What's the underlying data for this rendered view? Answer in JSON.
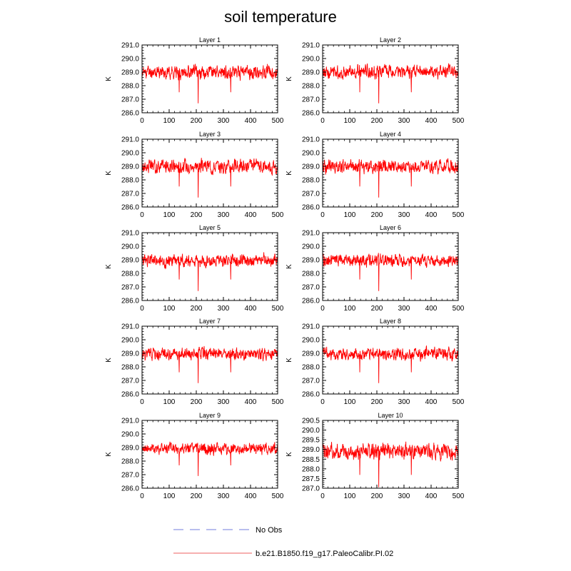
{
  "title": "soil temperature",
  "colors": {
    "series": "#ff0000",
    "no_obs": "#a0a8e8",
    "legend_line": "#f08080",
    "axis": "#000000"
  },
  "legend": {
    "entries": [
      {
        "label": "No Obs",
        "style": "dashed"
      },
      {
        "label": "b.e21.B1850.f19_g17.PaleoCalibr.PI.02",
        "style": "solid"
      }
    ]
  },
  "chart_data": [
    {
      "type": "line",
      "title": "Layer 1",
      "ylabel": "K",
      "xlim": [
        0,
        500
      ],
      "ylim": [
        286.0,
        291.0
      ],
      "xticks": [
        0,
        100,
        200,
        300,
        400,
        500
      ],
      "yticks": [
        286.0,
        287.0,
        288.0,
        289.0,
        290.0,
        291.0
      ],
      "yformat": 1,
      "series": [
        {
          "name": "b.e21.B1850.f19_g17.PaleoCalibr.PI.02",
          "mean": 289.0,
          "amplitude": 0.55,
          "dip_at": 207,
          "dip_value": 286.7,
          "seed": 11,
          "n": 500
        }
      ]
    },
    {
      "type": "line",
      "title": "Layer 2",
      "ylabel": "K",
      "xlim": [
        0,
        500
      ],
      "ylim": [
        286.0,
        291.0
      ],
      "xticks": [
        0,
        100,
        200,
        300,
        400,
        500
      ],
      "yticks": [
        286.0,
        287.0,
        288.0,
        289.0,
        290.0,
        291.0
      ],
      "yformat": 1,
      "series": [
        {
          "name": "b.e21.B1850.f19_g17.PaleoCalibr.PI.02",
          "mean": 289.0,
          "amplitude": 0.55,
          "dip_at": 207,
          "dip_value": 286.7,
          "seed": 13,
          "n": 500
        }
      ]
    },
    {
      "type": "line",
      "title": "Layer 3",
      "ylabel": "K",
      "xlim": [
        0,
        500
      ],
      "ylim": [
        286.0,
        291.0
      ],
      "xticks": [
        0,
        100,
        200,
        300,
        400,
        500
      ],
      "yticks": [
        286.0,
        287.0,
        288.0,
        289.0,
        290.0,
        291.0
      ],
      "yformat": 1,
      "series": [
        {
          "name": "b.e21.B1850.f19_g17.PaleoCalibr.PI.02",
          "mean": 289.0,
          "amplitude": 0.55,
          "dip_at": 207,
          "dip_value": 286.7,
          "seed": 17,
          "n": 500
        }
      ]
    },
    {
      "type": "line",
      "title": "Layer 4",
      "ylabel": "K",
      "xlim": [
        0,
        500
      ],
      "ylim": [
        286.0,
        291.0
      ],
      "xticks": [
        0,
        100,
        200,
        300,
        400,
        500
      ],
      "yticks": [
        286.0,
        287.0,
        288.0,
        289.0,
        290.0,
        291.0
      ],
      "yformat": 1,
      "series": [
        {
          "name": "b.e21.B1850.f19_g17.PaleoCalibr.PI.02",
          "mean": 289.0,
          "amplitude": 0.55,
          "dip_at": 207,
          "dip_value": 286.7,
          "seed": 19,
          "n": 500
        }
      ]
    },
    {
      "type": "line",
      "title": "Layer 5",
      "ylabel": "K",
      "xlim": [
        0,
        500
      ],
      "ylim": [
        286.0,
        291.0
      ],
      "xticks": [
        0,
        100,
        200,
        300,
        400,
        500
      ],
      "yticks": [
        286.0,
        287.0,
        288.0,
        289.0,
        290.0,
        291.0
      ],
      "yformat": 1,
      "series": [
        {
          "name": "b.e21.B1850.f19_g17.PaleoCalibr.PI.02",
          "mean": 288.95,
          "amplitude": 0.52,
          "dip_at": 207,
          "dip_value": 286.7,
          "seed": 23,
          "n": 500
        }
      ]
    },
    {
      "type": "line",
      "title": "Layer 6",
      "ylabel": "K",
      "xlim": [
        0,
        500
      ],
      "ylim": [
        286.0,
        291.0
      ],
      "xticks": [
        0,
        100,
        200,
        300,
        400,
        500
      ],
      "yticks": [
        286.0,
        287.0,
        288.0,
        289.0,
        290.0,
        291.0
      ],
      "yformat": 1,
      "series": [
        {
          "name": "b.e21.B1850.f19_g17.PaleoCalibr.PI.02",
          "mean": 288.95,
          "amplitude": 0.52,
          "dip_at": 207,
          "dip_value": 286.7,
          "seed": 29,
          "n": 500
        }
      ]
    },
    {
      "type": "line",
      "title": "Layer 7",
      "ylabel": "K",
      "xlim": [
        0,
        500
      ],
      "ylim": [
        286.0,
        291.0
      ],
      "xticks": [
        0,
        100,
        200,
        300,
        400,
        500
      ],
      "yticks": [
        286.0,
        287.0,
        288.0,
        289.0,
        290.0,
        291.0
      ],
      "yformat": 1,
      "series": [
        {
          "name": "b.e21.B1850.f19_g17.PaleoCalibr.PI.02",
          "mean": 288.95,
          "amplitude": 0.5,
          "dip_at": 207,
          "dip_value": 286.8,
          "seed": 31,
          "n": 500
        }
      ]
    },
    {
      "type": "line",
      "title": "Layer 8",
      "ylabel": "K",
      "xlim": [
        0,
        500
      ],
      "ylim": [
        286.0,
        291.0
      ],
      "xticks": [
        0,
        100,
        200,
        300,
        400,
        500
      ],
      "yticks": [
        286.0,
        287.0,
        288.0,
        289.0,
        290.0,
        291.0
      ],
      "yformat": 1,
      "series": [
        {
          "name": "b.e21.B1850.f19_g17.PaleoCalibr.PI.02",
          "mean": 288.95,
          "amplitude": 0.5,
          "dip_at": 207,
          "dip_value": 286.8,
          "seed": 37,
          "n": 500
        }
      ]
    },
    {
      "type": "line",
      "title": "Layer 9",
      "ylabel": "K",
      "xlim": [
        0,
        500
      ],
      "ylim": [
        286.0,
        291.0
      ],
      "xticks": [
        0,
        100,
        200,
        300,
        400,
        500
      ],
      "yticks": [
        286.0,
        287.0,
        288.0,
        289.0,
        290.0,
        291.0
      ],
      "yformat": 1,
      "series": [
        {
          "name": "b.e21.B1850.f19_g17.PaleoCalibr.PI.02",
          "mean": 288.9,
          "amplitude": 0.45,
          "dip_at": 207,
          "dip_value": 286.9,
          "seed": 41,
          "n": 500
        }
      ]
    },
    {
      "type": "line",
      "title": "Layer 10",
      "ylabel": "K",
      "xlim": [
        0,
        500
      ],
      "ylim": [
        287.0,
        290.5
      ],
      "xticks": [
        0,
        100,
        200,
        300,
        400,
        500
      ],
      "yticks": [
        287.0,
        287.5,
        288.0,
        288.5,
        289.0,
        289.5,
        290.0,
        290.5
      ],
      "yformat": 1,
      "series": [
        {
          "name": "b.e21.B1850.f19_g17.PaleoCalibr.PI.02",
          "mean": 288.9,
          "amplitude": 0.45,
          "dip_at": 207,
          "dip_value": 287.0,
          "seed": 43,
          "n": 500
        }
      ]
    }
  ]
}
